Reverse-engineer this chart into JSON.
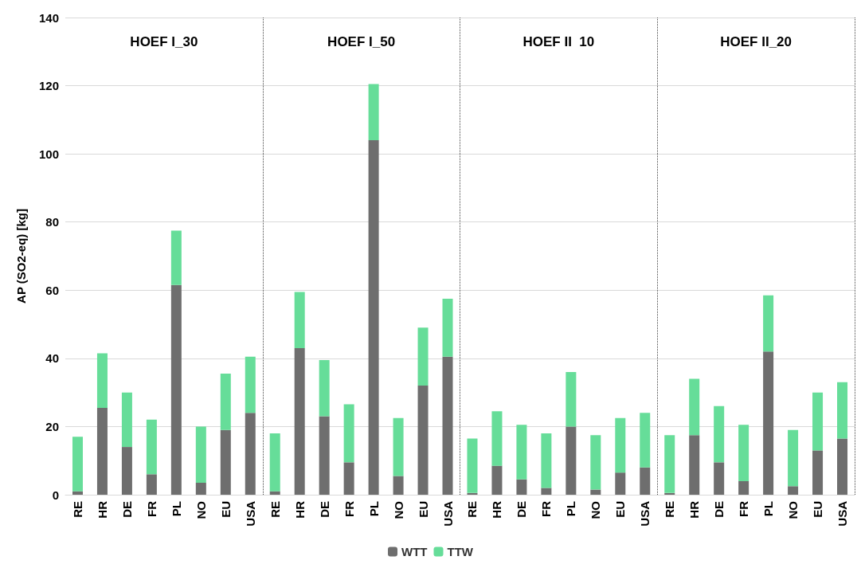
{
  "chart_data": {
    "type": "bar",
    "stacked": true,
    "ylabel": "AP (SO2-eq) [kg]",
    "annotations": [
      "HOEF I_30",
      "HOEF I_50",
      "HOEF II  10",
      "HOEF II_20"
    ],
    "categories": [
      "RE",
      "HR",
      "DE",
      "FR",
      "PL",
      "NO",
      "EU",
      "USA",
      "RE",
      "HR",
      "DE",
      "FR",
      "PL",
      "NO",
      "EU",
      "USA",
      "RE",
      "HR",
      "DE",
      "FR",
      "PL",
      "NO",
      "EU",
      "USA",
      "RE",
      "HR",
      "DE",
      "FR",
      "PL",
      "NO",
      "EU",
      "USA"
    ],
    "series": [
      {
        "name": "WTT",
        "color": "#6e6e6e",
        "values": [
          1,
          25.5,
          14,
          6,
          61.5,
          3.5,
          19,
          24,
          1,
          43,
          23,
          9.5,
          104,
          5.5,
          32,
          40.5,
          0.5,
          8.5,
          4.5,
          2,
          20,
          1.5,
          6.5,
          8,
          0.5,
          17.5,
          9.5,
          4,
          42,
          2.5,
          13,
          16.5
        ]
      },
      {
        "name": "TTW",
        "color": "#66dd99",
        "values": [
          16,
          16,
          16,
          16,
          16,
          16.5,
          16.5,
          16.5,
          17,
          16.5,
          16.5,
          17,
          16.5,
          17,
          17,
          17,
          16,
          16,
          16,
          16,
          16,
          16,
          16,
          16,
          17,
          16.5,
          16.5,
          16.5,
          16.5,
          16.5,
          17,
          16.5
        ]
      }
    ],
    "ylim": [
      0,
      140
    ],
    "yticks": [
      0,
      20,
      40,
      60,
      80,
      100,
      120,
      140
    ],
    "grid": "y",
    "legend": "bottom"
  }
}
